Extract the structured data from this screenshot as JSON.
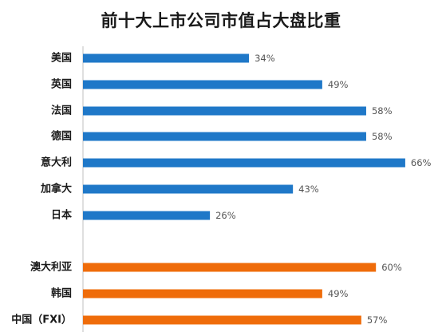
{
  "chart_data": {
    "type": "bar",
    "orientation": "horizontal",
    "title": "前十大上市公司市值占大盘比重",
    "categories": [
      "美国",
      "英国",
      "法国",
      "德国",
      "意大利",
      "加拿大",
      "日本",
      "澳大利亚",
      "韩国",
      "中国（FXI）"
    ],
    "values": [
      34,
      49,
      58,
      58,
      66,
      43,
      26,
      60,
      49,
      57
    ],
    "value_labels": [
      "34%",
      "49%",
      "58%",
      "58%",
      "66%",
      "43%",
      "26%",
      "60%",
      "49%",
      "57%"
    ],
    "unit": "%",
    "xlim": [
      0,
      70
    ],
    "groups": [
      {
        "color": "#1f78c8",
        "indices": [
          0,
          1,
          2,
          3,
          4,
          5,
          6
        ]
      },
      {
        "color": "#ef6c0a",
        "indices": [
          7,
          8,
          9
        ]
      }
    ],
    "grid": false,
    "legend": "none"
  }
}
